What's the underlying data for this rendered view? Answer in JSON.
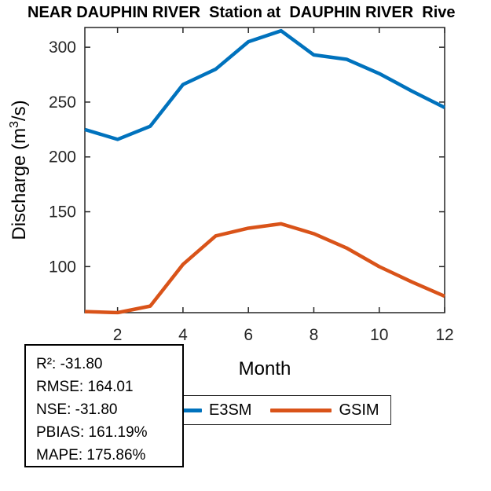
{
  "title": "NEAR DAUPHIN RIVER  Station at  DAUPHIN RIVER  Rive",
  "chart_data": {
    "type": "line",
    "x": [
      1,
      2,
      3,
      4,
      5,
      6,
      7,
      8,
      9,
      10,
      11,
      12
    ],
    "series": [
      {
        "name": "E3SM",
        "color": "#0072BD",
        "values": [
          225,
          216,
          228,
          266,
          280,
          305,
          315,
          293,
          289,
          276,
          260,
          245
        ]
      },
      {
        "name": "GSIM",
        "color": "#D95319",
        "values": [
          59,
          58,
          64,
          102,
          128,
          135,
          139,
          130,
          117,
          100,
          86,
          73
        ]
      }
    ],
    "xlabel": "Month",
    "ylabel": "Discharge (m³/s)",
    "ylabel_parts": {
      "prefix": "Discharge (m",
      "superscript": "3",
      "suffix": "/s)"
    },
    "xticks": [
      2,
      4,
      6,
      8,
      10,
      12
    ],
    "yticks": [
      100,
      150,
      200,
      250,
      300
    ],
    "xlim": [
      1,
      12
    ],
    "ylim": [
      58,
      318
    ],
    "grid": false,
    "legend_position": "below plot, horizontal",
    "axis_color": "#262626",
    "line_width": 4.5
  },
  "legend": {
    "items": [
      {
        "label": "E3SM",
        "color": "#0072BD"
      },
      {
        "label": "GSIM",
        "color": "#D95319"
      }
    ]
  },
  "stats": {
    "lines": [
      "R²: -31.80",
      "RMSE: 164.01",
      "NSE: -31.80",
      "PBIAS: 161.19%",
      "MAPE: 175.86%"
    ]
  }
}
